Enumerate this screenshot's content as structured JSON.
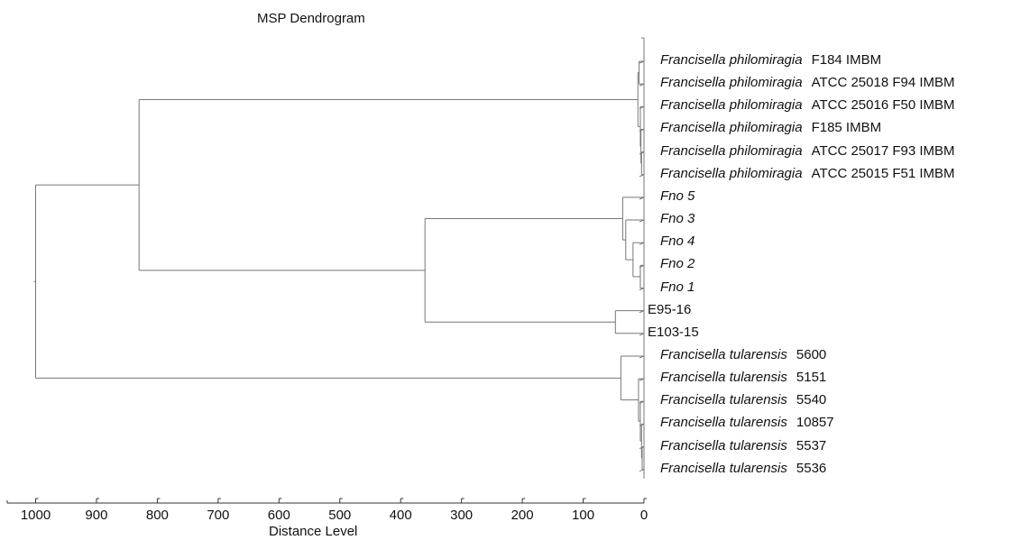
{
  "chart_data": {
    "type": "dendrogram",
    "title": "MSP Dendrogram",
    "xlabel": "Distance Level",
    "x_ticks": [
      1000,
      900,
      800,
      700,
      600,
      500,
      400,
      300,
      200,
      100,
      0
    ],
    "xlim": [
      1000,
      0
    ],
    "leaves": [
      {
        "species": "Francisella philomiragia",
        "strain": "F184 IMBM"
      },
      {
        "species": "Francisella philomiragia",
        "strain": "ATCC 25018 F94 IMBM"
      },
      {
        "species": "Francisella philomiragia",
        "strain": "ATCC 25016 F50 IMBM"
      },
      {
        "species": "Francisella philomiragia",
        "strain": "F185 IMBM"
      },
      {
        "species": "Francisella philomiragia",
        "strain": "ATCC 25017 F93 IMBM"
      },
      {
        "species": "Francisella philomiragia",
        "strain": "ATCC 25015 F51 IMBM"
      },
      {
        "species": "Fno 5",
        "strain": ""
      },
      {
        "species": "Fno 3",
        "strain": ""
      },
      {
        "species": "Fno 4",
        "strain": ""
      },
      {
        "species": "Fno 2",
        "strain": ""
      },
      {
        "species": "Fno 1",
        "strain": ""
      },
      {
        "species": "",
        "strain": "E95-16"
      },
      {
        "species": "",
        "strain": "E103-15"
      },
      {
        "species": "Francisella tularensis",
        "strain": "5600"
      },
      {
        "species": "Francisella tularensis",
        "strain": "5151"
      },
      {
        "species": "Francisella tularensis",
        "strain": "5540"
      },
      {
        "species": "Francisella tularensis",
        "strain": "10857"
      },
      {
        "species": "Francisella tularensis",
        "strain": "5537"
      },
      {
        "species": "Francisella tularensis",
        "strain": "5536"
      }
    ],
    "merges": [
      {
        "id": "P12",
        "children": [
          0,
          1
        ],
        "distance": 8
      },
      {
        "id": "P45",
        "children": [
          4,
          5
        ],
        "distance": 4
      },
      {
        "id": "P345",
        "children": [
          3,
          "P45"
        ],
        "distance": 5
      },
      {
        "id": "P2345",
        "children": [
          2,
          "P345"
        ],
        "distance": 6
      },
      {
        "id": "P",
        "children": [
          "P12",
          "P2345"
        ],
        "distance": 10
      },
      {
        "id": "F21",
        "children": [
          9,
          10
        ],
        "distance": 6
      },
      {
        "id": "F421",
        "children": [
          8,
          "F21"
        ],
        "distance": 18
      },
      {
        "id": "F3421",
        "children": [
          7,
          "F421"
        ],
        "distance": 30
      },
      {
        "id": "F",
        "children": [
          6,
          "F3421"
        ],
        "distance": 35
      },
      {
        "id": "E",
        "children": [
          11,
          12
        ],
        "distance": 47
      },
      {
        "id": "FE",
        "children": [
          "F",
          "E"
        ],
        "distance": 360
      },
      {
        "id": "PFE",
        "children": [
          "P",
          "FE"
        ],
        "distance": 830
      },
      {
        "id": "T56",
        "children": [
          17,
          18
        ],
        "distance": 3
      },
      {
        "id": "T456",
        "children": [
          16,
          "T56"
        ],
        "distance": 4
      },
      {
        "id": "T3456",
        "children": [
          15,
          "T456"
        ],
        "distance": 6
      },
      {
        "id": "T23456",
        "children": [
          14,
          "T3456"
        ],
        "distance": 9
      },
      {
        "id": "T",
        "children": [
          13,
          "T23456"
        ],
        "distance": 38
      },
      {
        "id": "ROOT",
        "children": [
          "PFE",
          "T"
        ],
        "distance": 1000
      }
    ]
  }
}
